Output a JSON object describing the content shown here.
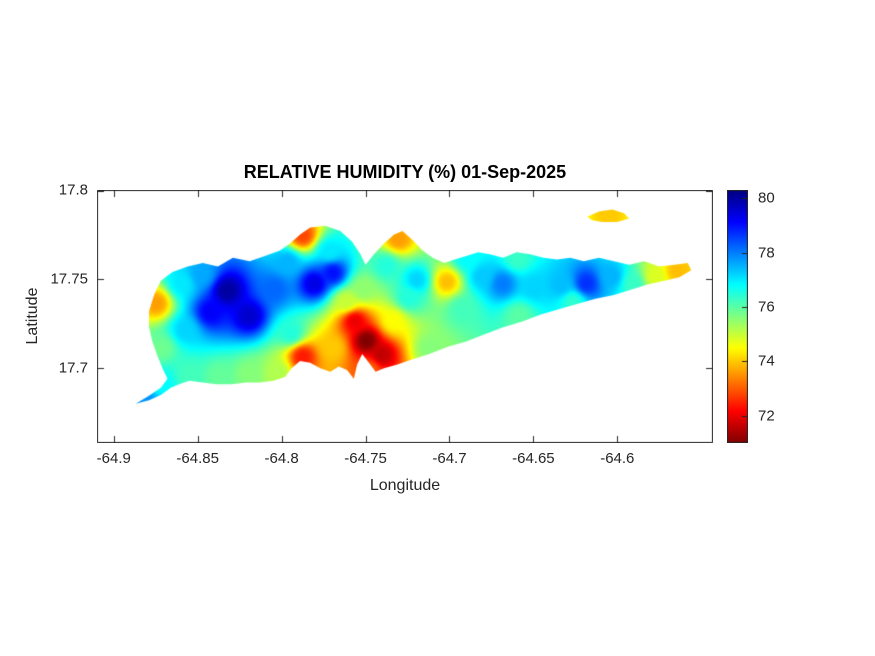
{
  "colors": {
    "background": "#ffffff",
    "axis": "#262626",
    "text": "#262626",
    "title": "#000000"
  },
  "chart_data": {
    "type": "heatmap",
    "title": "RELATIVE HUMIDITY (%) 01-Sep-2025",
    "xlabel": "Longitude",
    "ylabel": "Latitude",
    "xlim": [
      -64.91,
      -64.543
    ],
    "ylim": [
      17.658,
      17.8
    ],
    "x_ticks": [
      -64.9,
      -64.85,
      -64.8,
      -64.75,
      -64.7,
      -64.65,
      -64.6
    ],
    "x_tick_labels": [
      "-64.9",
      "-64.85",
      "-64.8",
      "-64.75",
      "-64.7",
      "-64.65",
      "-64.6"
    ],
    "y_ticks": [
      17.8,
      17.75,
      17.7
    ],
    "y_tick_labels": [
      "17.8",
      "17.75",
      "17.7"
    ],
    "grid": false,
    "legend": "none",
    "colormap": "jet reversed (high values dark blue, low values dark red)",
    "colorbar": {
      "position": "right",
      "ticks": [
        80,
        78,
        76,
        74,
        72
      ],
      "tick_labels": [
        "80",
        "78",
        "76",
        "74",
        "72"
      ],
      "vmin": 71.0,
      "vmax": 80.3
    },
    "island_outline": [
      [
        -64.887,
        17.68
      ],
      [
        -64.88,
        17.684
      ],
      [
        -64.872,
        17.689
      ],
      [
        -64.868,
        17.694
      ],
      [
        -64.871,
        17.7
      ],
      [
        -64.874,
        17.707
      ],
      [
        -64.877,
        17.715
      ],
      [
        -64.879,
        17.723
      ],
      [
        -64.879,
        17.732
      ],
      [
        -64.876,
        17.741
      ],
      [
        -64.872,
        17.749
      ],
      [
        -64.865,
        17.754
      ],
      [
        -64.856,
        17.757
      ],
      [
        -64.847,
        17.759
      ],
      [
        -64.838,
        17.757
      ],
      [
        -64.829,
        17.762
      ],
      [
        -64.819,
        17.76
      ],
      [
        -64.81,
        17.763
      ],
      [
        -64.801,
        17.766
      ],
      [
        -64.795,
        17.77
      ],
      [
        -64.789,
        17.775
      ],
      [
        -64.783,
        17.779
      ],
      [
        -64.774,
        17.78
      ],
      [
        -64.765,
        17.777
      ],
      [
        -64.758,
        17.771
      ],
      [
        -64.753,
        17.764
      ],
      [
        -64.75,
        17.758
      ],
      [
        -64.745,
        17.764
      ],
      [
        -64.739,
        17.77
      ],
      [
        -64.733,
        17.775
      ],
      [
        -64.728,
        17.777
      ],
      [
        -64.722,
        17.772
      ],
      [
        -64.716,
        17.766
      ],
      [
        -64.71,
        17.762
      ],
      [
        -64.703,
        17.759
      ],
      [
        -64.697,
        17.761
      ],
      [
        -64.69,
        17.763
      ],
      [
        -64.683,
        17.765
      ],
      [
        -64.676,
        17.764
      ],
      [
        -64.668,
        17.762
      ],
      [
        -64.66,
        17.765
      ],
      [
        -64.652,
        17.764
      ],
      [
        -64.644,
        17.762
      ],
      [
        -64.636,
        17.761
      ],
      [
        -64.628,
        17.762
      ],
      [
        -64.62,
        17.76
      ],
      [
        -64.611,
        17.762
      ],
      [
        -64.602,
        17.76
      ],
      [
        -64.593,
        17.758
      ],
      [
        -64.584,
        17.76
      ],
      [
        -64.575,
        17.757
      ],
      [
        -64.566,
        17.758
      ],
      [
        -64.558,
        17.759
      ],
      [
        -64.556,
        17.755
      ],
      [
        -64.563,
        17.751
      ],
      [
        -64.572,
        17.749
      ],
      [
        -64.582,
        17.747
      ],
      [
        -64.592,
        17.744
      ],
      [
        -64.602,
        17.741
      ],
      [
        -64.613,
        17.739
      ],
      [
        -64.624,
        17.736
      ],
      [
        -64.635,
        17.733
      ],
      [
        -64.646,
        17.73
      ],
      [
        -64.657,
        17.726
      ],
      [
        -64.668,
        17.723
      ],
      [
        -64.679,
        17.719
      ],
      [
        -64.69,
        17.715
      ],
      [
        -64.701,
        17.712
      ],
      [
        -64.712,
        17.708
      ],
      [
        -64.722,
        17.705
      ],
      [
        -64.731,
        17.702
      ],
      [
        -64.739,
        17.7
      ],
      [
        -64.744,
        17.698
      ],
      [
        -64.748,
        17.703
      ],
      [
        -64.752,
        17.708
      ],
      [
        -64.755,
        17.702
      ],
      [
        -64.757,
        17.694
      ],
      [
        -64.761,
        17.699
      ],
      [
        -64.766,
        17.701
      ],
      [
        -64.771,
        17.698
      ],
      [
        -64.777,
        17.7
      ],
      [
        -64.783,
        17.703
      ],
      [
        -64.789,
        17.704
      ],
      [
        -64.794,
        17.7
      ],
      [
        -64.798,
        17.695
      ],
      [
        -64.805,
        17.693
      ],
      [
        -64.813,
        17.692
      ],
      [
        -64.821,
        17.692
      ],
      [
        -64.83,
        17.691
      ],
      [
        -64.839,
        17.691
      ],
      [
        -64.847,
        17.692
      ],
      [
        -64.855,
        17.693
      ],
      [
        -64.861,
        17.691
      ],
      [
        -64.866,
        17.689
      ],
      [
        -64.872,
        17.685
      ],
      [
        -64.879,
        17.682
      ]
    ],
    "islet_outline": [
      [
        -64.618,
        17.785
      ],
      [
        -64.611,
        17.788
      ],
      [
        -64.603,
        17.789
      ],
      [
        -64.596,
        17.787
      ],
      [
        -64.593,
        17.784
      ],
      [
        -64.6,
        17.782
      ],
      [
        -64.609,
        17.782
      ],
      [
        -64.615,
        17.783
      ]
    ],
    "stations": [
      {
        "lon": -64.882,
        "lat": 17.682,
        "rh": 77.8
      },
      {
        "lon": -64.872,
        "lat": 17.692,
        "rh": 76.8
      },
      {
        "lon": -64.875,
        "lat": 17.737,
        "rh": 73.6
      },
      {
        "lon": -64.872,
        "lat": 17.712,
        "rh": 75.8
      },
      {
        "lon": -64.86,
        "lat": 17.748,
        "rh": 77.0
      },
      {
        "lon": -64.848,
        "lat": 17.753,
        "rh": 77.6
      },
      {
        "lon": -64.833,
        "lat": 17.744,
        "rh": 80.0
      },
      {
        "lon": -64.843,
        "lat": 17.732,
        "rh": 79.2
      },
      {
        "lon": -64.82,
        "lat": 17.73,
        "rh": 79.6
      },
      {
        "lon": -64.858,
        "lat": 17.722,
        "rh": 77.2
      },
      {
        "lon": -64.856,
        "lat": 17.697,
        "rh": 76.2
      },
      {
        "lon": -64.838,
        "lat": 17.696,
        "rh": 75.9
      },
      {
        "lon": -64.82,
        "lat": 17.697,
        "rh": 75.6
      },
      {
        "lon": -64.803,
        "lat": 17.698,
        "rh": 75.2
      },
      {
        "lon": -64.788,
        "lat": 17.707,
        "rh": 72.4
      },
      {
        "lon": -64.795,
        "lat": 17.72,
        "rh": 76.5
      },
      {
        "lon": -64.805,
        "lat": 17.745,
        "rh": 78.2
      },
      {
        "lon": -64.797,
        "lat": 17.76,
        "rh": 77.5
      },
      {
        "lon": -64.788,
        "lat": 17.775,
        "rh": 72.8
      },
      {
        "lon": -64.781,
        "lat": 17.748,
        "rh": 79.4
      },
      {
        "lon": -64.77,
        "lat": 17.754,
        "rh": 79.0
      },
      {
        "lon": -64.772,
        "lat": 17.766,
        "rh": 77.0
      },
      {
        "lon": -64.762,
        "lat": 17.738,
        "rh": 75.0
      },
      {
        "lon": -64.77,
        "lat": 17.712,
        "rh": 74.0
      },
      {
        "lon": -64.752,
        "lat": 17.745,
        "rh": 75.5
      },
      {
        "lon": -64.75,
        "lat": 17.716,
        "rh": 71.0
      },
      {
        "lon": -64.757,
        "lat": 17.727,
        "rh": 72.0
      },
      {
        "lon": -64.741,
        "lat": 17.708,
        "rh": 71.6
      },
      {
        "lon": -64.748,
        "lat": 17.7,
        "rh": 73.0
      },
      {
        "lon": -64.734,
        "lat": 17.727,
        "rh": 74.5
      },
      {
        "lon": -64.725,
        "lat": 17.74,
        "rh": 76.5
      },
      {
        "lon": -64.731,
        "lat": 17.773,
        "rh": 73.6
      },
      {
        "lon": -64.738,
        "lat": 17.758,
        "rh": 76.5
      },
      {
        "lon": -64.72,
        "lat": 17.75,
        "rh": 77.2
      },
      {
        "lon": -64.712,
        "lat": 17.712,
        "rh": 75.6
      },
      {
        "lon": -64.702,
        "lat": 17.749,
        "rh": 73.9
      },
      {
        "lon": -64.693,
        "lat": 17.734,
        "rh": 76.2
      },
      {
        "lon": -64.681,
        "lat": 17.752,
        "rh": 77.3
      },
      {
        "lon": -64.669,
        "lat": 17.748,
        "rh": 78.0
      },
      {
        "lon": -64.659,
        "lat": 17.73,
        "rh": 76.0
      },
      {
        "lon": -64.65,
        "lat": 17.746,
        "rh": 77.2
      },
      {
        "lon": -64.634,
        "lat": 17.747,
        "rh": 77.4
      },
      {
        "lon": -64.627,
        "lat": 17.738,
        "rh": 76.4
      },
      {
        "lon": -64.619,
        "lat": 17.748,
        "rh": 78.7
      },
      {
        "lon": -64.604,
        "lat": 17.752,
        "rh": 77.5
      },
      {
        "lon": -64.591,
        "lat": 17.748,
        "rh": 76.3
      },
      {
        "lon": -64.578,
        "lat": 17.752,
        "rh": 74.8
      },
      {
        "lon": -64.565,
        "lat": 17.755,
        "rh": 73.9
      },
      {
        "lon": -64.66,
        "lat": 17.762,
        "rh": 76.3
      },
      {
        "lon": -64.69,
        "lat": 17.762,
        "rh": 76.8
      },
      {
        "lon": -64.606,
        "lat": 17.786,
        "rh": 74.0
      }
    ]
  }
}
